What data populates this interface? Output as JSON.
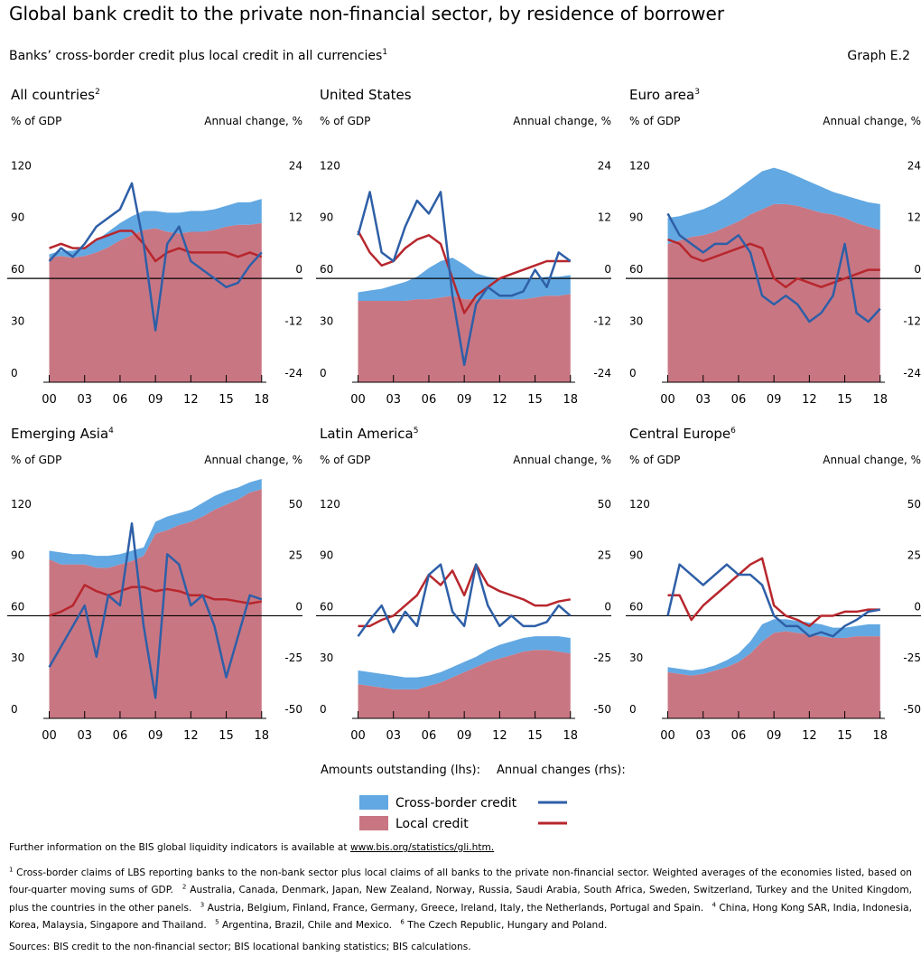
{
  "title": "Global bank credit to the private non-financial sector, by residence of borrower",
  "subtitle": "Banks’ cross-border credit plus local credit in all currencies",
  "subtitle_note": "1",
  "graph_label": "Graph E.2",
  "legend": {
    "lhs_title": "Amounts outstanding (lhs):",
    "rhs_title": "Annual changes (rhs):"
  },
  "further_info": "Further information on the BIS global liquidity indicators is available at ",
  "further_link": "www.bis.org/statistics/gli.htm.",
  "footnotes": [
    {
      "mark": "1",
      "text": "Cross-border claims of LBS reporting banks to the non-bank sector plus local claims of all banks to the private non-financial sector. Weighted averages of the economies listed, based on four-quarter moving sums of GDP."
    },
    {
      "mark": "2",
      "text": "Australia, Canada, Denmark, Japan, New Zealand, Norway, Russia, Saudi Arabia, South Africa, Sweden, Switzerland, Turkey and the United Kingdom, plus the countries in the other panels."
    },
    {
      "mark": "3",
      "text": "Austria, Belgium, Finland, France, Germany, Greece, Ireland, Italy, the Netherlands, Portugal and Spain."
    },
    {
      "mark": "4",
      "text": "China, Hong Kong SAR, India, Indonesia, Korea, Malaysia, Singapore and Thailand."
    },
    {
      "mark": "5",
      "text": "Argentina, Brazil, Chile and Mexico."
    },
    {
      "mark": "6",
      "text": "The Czech Republic, Hungary and Poland."
    }
  ],
  "sources": "Sources: BIS credit to the non-financial sector; BIS locational banking statistics; BIS calculations.",
  "chart_data": [
    {
      "type": "area-line",
      "title": "All countries",
      "note": "2",
      "ylabel": "% of GDP",
      "y2label": "Annual change, %",
      "x": [
        2000,
        2001,
        2002,
        2003,
        2004,
        2005,
        2006,
        2007,
        2008,
        2009,
        2010,
        2011,
        2012,
        2013,
        2014,
        2015,
        2016,
        2017,
        2018
      ],
      "xlim": [
        1999.5,
        2018.4
      ],
      "xticks": [
        {
          "value": 2000,
          "label": "00"
        },
        {
          "value": 2003,
          "label": "03"
        },
        {
          "value": 2006,
          "label": "06"
        },
        {
          "value": 2009,
          "label": "09"
        },
        {
          "value": 2012,
          "label": "12"
        },
        {
          "value": 2015,
          "label": "15"
        },
        {
          "value": 2018,
          "label": "18"
        }
      ],
      "ylim": [
        0,
        140
      ],
      "yticks": [
        0,
        30,
        60,
        90,
        120
      ],
      "y2lim": [
        -24,
        32
      ],
      "y2ticks": [
        -24,
        -12,
        0,
        12,
        24
      ],
      "zero_line": true,
      "series": [
        {
          "name": "Cross-border credit",
          "color": "#62a8e2",
          "line_color": "#2e5fa7",
          "values": [
            2,
            3,
            4,
            5,
            7,
            9,
            10,
            11,
            11,
            10,
            11,
            12,
            12,
            12,
            12,
            12,
            13,
            13,
            14
          ],
          "changes": [
            4,
            7,
            5,
            8,
            12,
            14,
            16,
            22,
            8,
            -12,
            8,
            12,
            4,
            2,
            0,
            -2,
            -1,
            3,
            6
          ]
        },
        {
          "name": "Local credit",
          "color": "#c97683",
          "line_color": "#b7272d",
          "values": [
            72,
            73,
            72,
            73,
            75,
            78,
            82,
            85,
            88,
            89,
            87,
            86,
            87,
            87,
            88,
            90,
            91,
            91,
            92
          ],
          "changes": [
            7,
            8,
            7,
            7,
            9,
            10,
            11,
            11,
            8,
            4,
            6,
            7,
            6,
            6,
            6,
            6,
            5,
            6,
            5
          ]
        }
      ]
    },
    {
      "type": "area-line",
      "title": "United States",
      "ylabel": "% of GDP",
      "y2label": "Annual change, %",
      "x": [
        2000,
        2001,
        2002,
        2003,
        2004,
        2005,
        2006,
        2007,
        2008,
        2009,
        2010,
        2011,
        2012,
        2013,
        2014,
        2015,
        2016,
        2017,
        2018
      ],
      "xlim": [
        1999.5,
        2018.4
      ],
      "xticks": [
        {
          "value": 2000,
          "label": "00"
        },
        {
          "value": 2003,
          "label": "03"
        },
        {
          "value": 2006,
          "label": "06"
        },
        {
          "value": 2009,
          "label": "09"
        },
        {
          "value": 2012,
          "label": "12"
        },
        {
          "value": 2015,
          "label": "15"
        },
        {
          "value": 2018,
          "label": "18"
        }
      ],
      "ylim": [
        0,
        140
      ],
      "yticks": [
        0,
        30,
        60,
        90,
        120
      ],
      "y2lim": [
        -24,
        32
      ],
      "y2ticks": [
        -24,
        -12,
        0,
        12,
        24
      ],
      "zero_line": true,
      "series": [
        {
          "name": "Cross-border credit",
          "color": "#62a8e2",
          "line_color": "#2e5fa7",
          "values": [
            5,
            6,
            7,
            9,
            11,
            13,
            18,
            21,
            22,
            20,
            15,
            13,
            12,
            12,
            12,
            11,
            11,
            11,
            11
          ],
          "changes": [
            10,
            20,
            6,
            4,
            12,
            18,
            15,
            20,
            -4,
            -20,
            -6,
            -2,
            -4,
            -4,
            -3,
            2,
            -2,
            6,
            4
          ]
        },
        {
          "name": "Local credit",
          "color": "#c97683",
          "line_color": "#b7272d",
          "values": [
            47,
            47,
            47,
            47,
            47,
            48,
            48,
            49,
            50,
            48,
            48,
            48,
            48,
            48,
            48,
            49,
            50,
            50,
            51
          ],
          "changes": [
            11,
            6,
            3,
            4,
            7,
            9,
            10,
            8,
            0,
            -8,
            -4,
            -2,
            0,
            1,
            2,
            3,
            4,
            4,
            4
          ]
        }
      ]
    },
    {
      "type": "area-line",
      "title": "Euro area",
      "note": "3",
      "ylabel": "% of GDP",
      "y2label": "Annual change, %",
      "x": [
        2000,
        2001,
        2002,
        2003,
        2004,
        2005,
        2006,
        2007,
        2008,
        2009,
        2010,
        2011,
        2012,
        2013,
        2014,
        2015,
        2016,
        2017,
        2018
      ],
      "xlim": [
        1999.5,
        2018.4
      ],
      "xticks": [
        {
          "value": 2000,
          "label": "00"
        },
        {
          "value": 2003,
          "label": "03"
        },
        {
          "value": 2006,
          "label": "06"
        },
        {
          "value": 2009,
          "label": "09"
        },
        {
          "value": 2012,
          "label": "12"
        },
        {
          "value": 2015,
          "label": "15"
        },
        {
          "value": 2018,
          "label": "18"
        }
      ],
      "ylim": [
        0,
        140
      ],
      "yticks": [
        0,
        30,
        60,
        90,
        120
      ],
      "y2lim": [
        -24,
        32
      ],
      "y2ticks": [
        -24,
        -12,
        0,
        12,
        24
      ],
      "zero_line": true,
      "series": [
        {
          "name": "Cross-border credit",
          "color": "#62a8e2",
          "line_color": "#2e5fa7",
          "values": [
            15,
            14,
            14,
            15,
            16,
            17,
            19,
            20,
            22,
            21,
            19,
            17,
            16,
            15,
            13,
            13,
            14,
            14,
            15
          ],
          "changes": [
            15,
            10,
            8,
            6,
            8,
            8,
            10,
            6,
            -4,
            -6,
            -4,
            -6,
            -10,
            -8,
            -4,
            8,
            -8,
            -10,
            -7
          ]
        },
        {
          "name": "Local credit",
          "color": "#c97683",
          "line_color": "#b7272d",
          "values": [
            80,
            82,
            84,
            85,
            87,
            90,
            93,
            97,
            100,
            103,
            103,
            102,
            100,
            98,
            97,
            95,
            92,
            90,
            88
          ],
          "changes": [
            9,
            8,
            5,
            4,
            5,
            6,
            7,
            8,
            7,
            0,
            -2,
            0,
            -1,
            -2,
            -1,
            0,
            1,
            2,
            2
          ]
        }
      ]
    },
    {
      "type": "area-line",
      "title": "Emerging Asia",
      "note": "4",
      "ylabel": "% of GDP",
      "y2label": "Annual change, %",
      "x": [
        2000,
        2001,
        2002,
        2003,
        2004,
        2005,
        2006,
        2007,
        2008,
        2009,
        2010,
        2011,
        2012,
        2013,
        2014,
        2015,
        2016,
        2017,
        2018
      ],
      "xlim": [
        1999.5,
        2018.4
      ],
      "xticks": [
        {
          "value": 2000,
          "label": "00"
        },
        {
          "value": 2003,
          "label": "03"
        },
        {
          "value": 2006,
          "label": "06"
        },
        {
          "value": 2009,
          "label": "09"
        },
        {
          "value": 2012,
          "label": "12"
        },
        {
          "value": 2015,
          "label": "15"
        },
        {
          "value": 2018,
          "label": "18"
        }
      ],
      "ylim": [
        0,
        140
      ],
      "yticks": [
        0,
        30,
        60,
        90,
        120
      ],
      "y2lim": [
        -50,
        66.7
      ],
      "y2ticks": [
        -50,
        -25,
        0,
        25,
        50
      ],
      "zero_line": true,
      "series": [
        {
          "name": "Cross-border credit",
          "color": "#62a8e2",
          "line_color": "#2e5fa7",
          "values": [
            5,
            7,
            6,
            6,
            7,
            7,
            6,
            6,
            5,
            7,
            8,
            7,
            7,
            8,
            8,
            8,
            7,
            6,
            6
          ],
          "changes": [
            -25,
            -15,
            -5,
            5,
            -20,
            10,
            5,
            45,
            -5,
            -40,
            30,
            25,
            5,
            10,
            -5,
            -30,
            -10,
            10,
            8
          ]
        },
        {
          "name": "Local credit",
          "color": "#c97683",
          "line_color": "#b7272d",
          "values": [
            93,
            90,
            90,
            90,
            88,
            88,
            90,
            92,
            95,
            108,
            110,
            113,
            115,
            118,
            122,
            125,
            128,
            132,
            134
          ],
          "changes": [
            0,
            2,
            5,
            15,
            12,
            10,
            12,
            14,
            14,
            12,
            13,
            12,
            10,
            10,
            8,
            8,
            7,
            6,
            7
          ]
        }
      ]
    },
    {
      "type": "area-line",
      "title": "Latin America",
      "note": "5",
      "ylabel": "% of GDP",
      "y2label": "Annual change, %",
      "x": [
        2000,
        2001,
        2002,
        2003,
        2004,
        2005,
        2006,
        2007,
        2008,
        2009,
        2010,
        2011,
        2012,
        2013,
        2014,
        2015,
        2016,
        2017,
        2018
      ],
      "xlim": [
        1999.5,
        2018.4
      ],
      "xticks": [
        {
          "value": 2000,
          "label": "00"
        },
        {
          "value": 2003,
          "label": "03"
        },
        {
          "value": 2006,
          "label": "06"
        },
        {
          "value": 2009,
          "label": "09"
        },
        {
          "value": 2012,
          "label": "12"
        },
        {
          "value": 2015,
          "label": "15"
        },
        {
          "value": 2018,
          "label": "18"
        }
      ],
      "ylim": [
        0,
        140
      ],
      "yticks": [
        0,
        30,
        60,
        90,
        120
      ],
      "y2lim": [
        -50,
        66.7
      ],
      "y2ticks": [
        -50,
        -25,
        0,
        25,
        50
      ],
      "zero_line": true,
      "series": [
        {
          "name": "Cross-border credit",
          "color": "#62a8e2",
          "line_color": "#2e5fa7",
          "values": [
            8,
            8,
            8,
            8,
            7,
            7,
            6,
            6,
            6,
            6,
            6,
            7,
            8,
            8,
            8,
            8,
            8,
            9,
            9
          ],
          "changes": [
            -10,
            -2,
            5,
            -8,
            2,
            -5,
            20,
            25,
            2,
            -5,
            25,
            5,
            -5,
            0,
            -5,
            -5,
            -3,
            5,
            0
          ]
        },
        {
          "name": "Local credit",
          "color": "#c97683",
          "line_color": "#b7272d",
          "values": [
            20,
            19,
            18,
            17,
            17,
            17,
            19,
            21,
            24,
            27,
            30,
            33,
            35,
            37,
            39,
            40,
            40,
            39,
            38
          ],
          "changes": [
            -5,
            -5,
            -2,
            0,
            5,
            10,
            20,
            15,
            22,
            10,
            25,
            15,
            12,
            10,
            8,
            5,
            5,
            7,
            8
          ]
        }
      ]
    },
    {
      "type": "area-line",
      "title": "Central Europe",
      "note": "6",
      "ylabel": "% of GDP",
      "y2label": "Annual change, %",
      "x": [
        2000,
        2001,
        2002,
        2003,
        2004,
        2005,
        2006,
        2007,
        2008,
        2009,
        2010,
        2011,
        2012,
        2013,
        2014,
        2015,
        2016,
        2017,
        2018
      ],
      "xlim": [
        1999.5,
        2018.4
      ],
      "xticks": [
        {
          "value": 2000,
          "label": "00"
        },
        {
          "value": 2003,
          "label": "03"
        },
        {
          "value": 2006,
          "label": "06"
        },
        {
          "value": 2009,
          "label": "09"
        },
        {
          "value": 2012,
          "label": "12"
        },
        {
          "value": 2015,
          "label": "15"
        },
        {
          "value": 2018,
          "label": "18"
        }
      ],
      "ylim": [
        0,
        140
      ],
      "yticks": [
        0,
        30,
        60,
        90,
        120
      ],
      "y2lim": [
        -50,
        66.7
      ],
      "y2ticks": [
        -50,
        -25,
        0,
        25,
        50
      ],
      "zero_line": true,
      "series": [
        {
          "name": "Cross-border credit",
          "color": "#62a8e2",
          "line_color": "#2e5fa7",
          "values": [
            3,
            3,
            3,
            3,
            3,
            4,
            5,
            7,
            10,
            8,
            7,
            7,
            7,
            7,
            6,
            6,
            6,
            7,
            7
          ],
          "changes": [
            0,
            25,
            20,
            15,
            20,
            25,
            20,
            20,
            15,
            0,
            -5,
            -5,
            -10,
            -8,
            -10,
            -5,
            -2,
            2,
            3
          ]
        },
        {
          "name": "Local credit",
          "color": "#c97683",
          "line_color": "#b7272d",
          "values": [
            27,
            26,
            25,
            26,
            28,
            30,
            33,
            38,
            45,
            50,
            51,
            50,
            49,
            48,
            47,
            47,
            48,
            48,
            48
          ],
          "changes": [
            10,
            10,
            -2,
            5,
            10,
            15,
            20,
            25,
            28,
            5,
            0,
            -2,
            -5,
            0,
            0,
            2,
            2,
            3,
            3
          ]
        }
      ]
    }
  ]
}
